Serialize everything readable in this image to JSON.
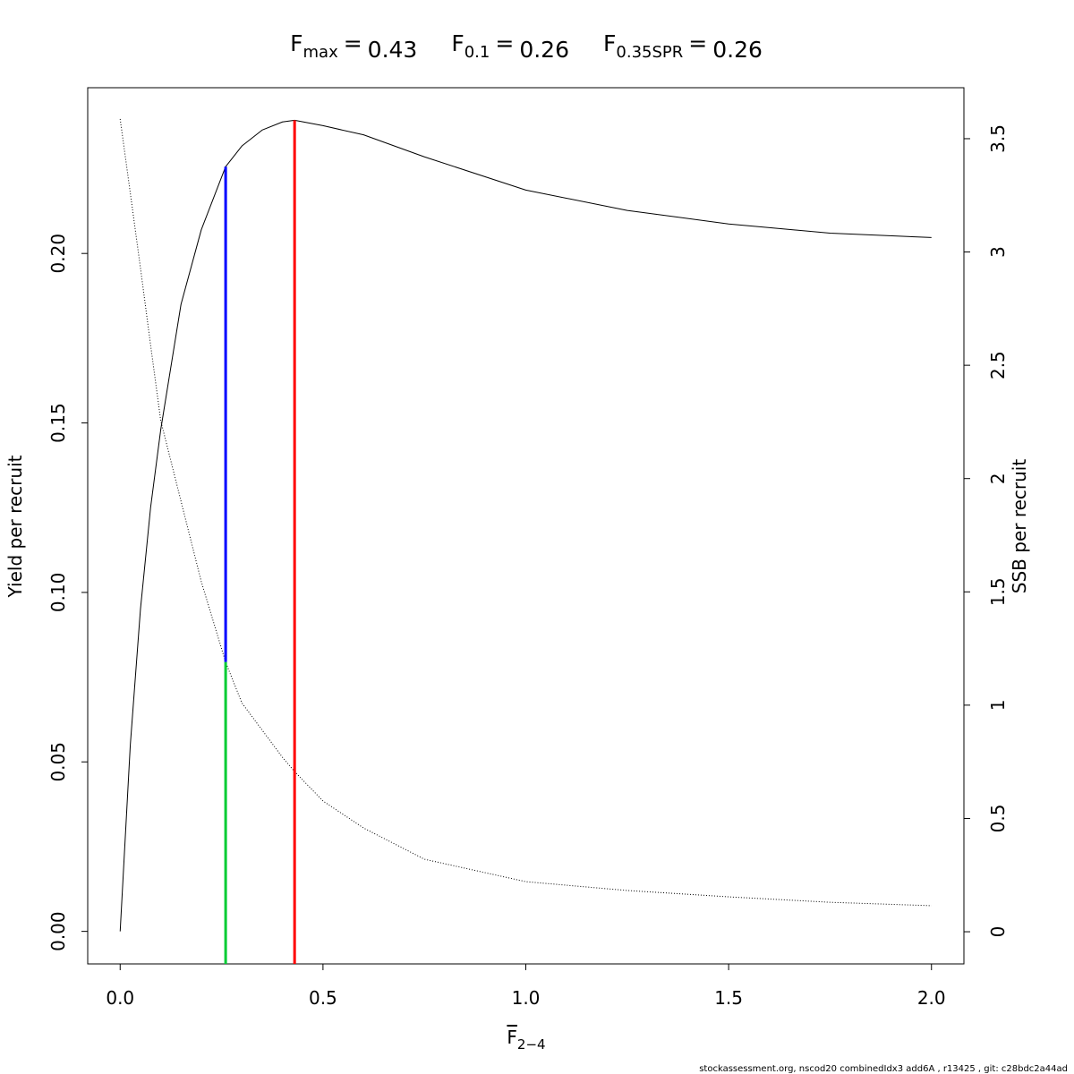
{
  "chart_data": {
    "type": "line",
    "references": [
      {
        "symbol": "F",
        "subscript": "max",
        "relation": "=",
        "value": 0.43,
        "color": "#ff0000",
        "yield": 0.2393
      },
      {
        "symbol": "F",
        "subscript": "0.1",
        "relation": "=",
        "value": 0.26,
        "color": "#0000ff",
        "yield": 0.2256
      },
      {
        "symbol": "F",
        "subscript": "0.35SPR",
        "relation": "=",
        "value": 0.26,
        "color": "#00cc33",
        "ssb": 1.19
      }
    ],
    "xlabel": {
      "symbol": "F",
      "subscript": "2−4"
    },
    "ylabel": "Yield per recruit",
    "y2label": "SSB per recruit",
    "footer": "stockassessment.org, nscod20 combinedIdx3 add6A  , r13425 , git: c28bdc2a44ad",
    "x": [
      0,
      0.025,
      0.05,
      0.075,
      0.1,
      0.15,
      0.2,
      0.26,
      0.3,
      0.35,
      0.4,
      0.43,
      0.5,
      0.6,
      0.75,
      1.0,
      1.25,
      1.5,
      1.75,
      2.0
    ],
    "series": [
      {
        "color": "#000000",
        "dash": "solid",
        "axis": "y",
        "values": [
          0,
          0.055,
          0.095,
          0.125,
          0.148,
          0.185,
          0.207,
          0.2256,
          0.2317,
          0.2364,
          0.2388,
          0.2393,
          0.2377,
          0.235,
          0.2285,
          0.2187,
          0.2127,
          0.2087,
          0.206,
          0.2047
        ]
      },
      {
        "color": "#000000",
        "dash": "dotted",
        "axis": "y2",
        "values": [
          3.587,
          3.26,
          2.93,
          2.59,
          2.256,
          1.9,
          1.545,
          1.19,
          1.01,
          0.89,
          0.77,
          0.707,
          0.577,
          0.458,
          0.32,
          0.221,
          0.182,
          0.154,
          0.13,
          0.115
        ]
      }
    ],
    "xlim": [
      -0.08,
      2.08
    ],
    "ylim": [
      -0.0096,
      0.2489
    ],
    "y2lim": [
      -0.142,
      3.725
    ],
    "xticks": [
      {
        "value": 0,
        "label": "0.0"
      },
      0.5,
      {
        "value": 1,
        "label": "1.0"
      },
      1.5,
      {
        "value": 2,
        "label": "2.0"
      }
    ],
    "yticks": [
      {
        "value": 0,
        "label": "0.00"
      },
      {
        "value": 0.05,
        "label": "0.05"
      },
      {
        "value": 0.1,
        "label": "0.10"
      },
      {
        "value": 0.15,
        "label": "0.15"
      },
      {
        "value": 0.2,
        "label": "0.20"
      }
    ],
    "y2ticks": [
      0,
      0.5,
      1,
      1.5,
      2,
      2.5,
      3,
      3.5
    ],
    "grid": false
  }
}
